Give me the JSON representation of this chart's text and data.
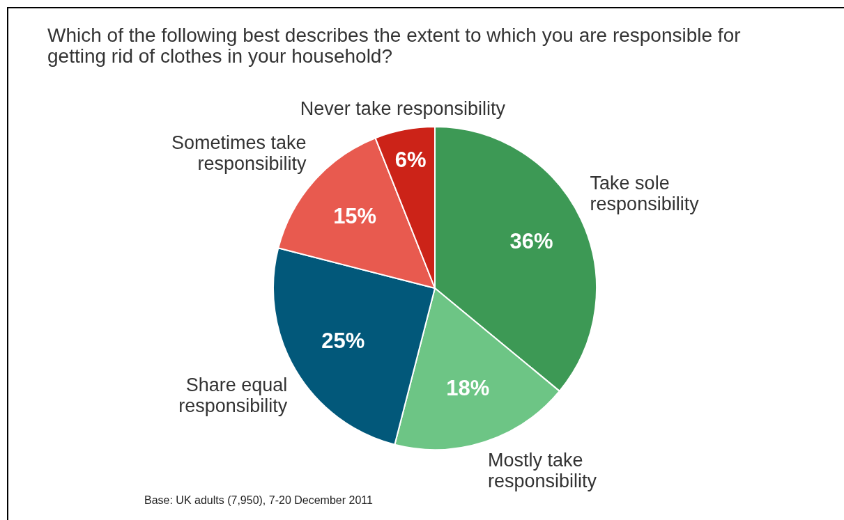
{
  "chart_data": {
    "type": "pie",
    "title": "Which of the following best describes the extent to which you are responsible for getting rid of clothes in your household?",
    "categories": [
      "Take sole responsibility",
      "Mostly take responsibility",
      "Share equal responsibility",
      "Sometimes take responsibility",
      "Never take responsibility"
    ],
    "values": [
      36,
      18,
      25,
      15,
      6
    ],
    "colors": [
      "#3d9955",
      "#6dc585",
      "#02587a",
      "#e85a4f",
      "#cc2318"
    ],
    "value_labels": [
      "36%",
      "18%",
      "25%",
      "15%",
      "6%"
    ],
    "annotations": [
      "Base: UK adults (7,950), 7-20 December 2011"
    ]
  }
}
